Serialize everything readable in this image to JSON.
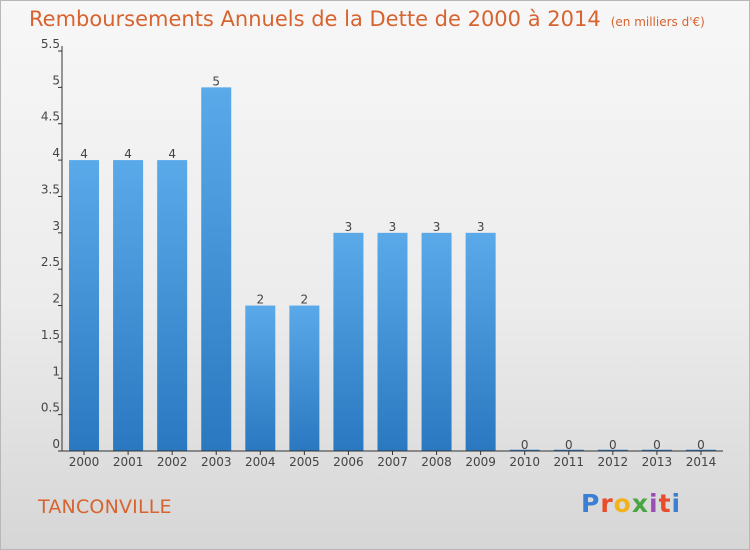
{
  "title": "Remboursements Annuels de la Dette de 2000 à 2014",
  "unit_note": "(en milliers d'€)",
  "city": "TANCONVILLE",
  "logo": {
    "text": "Proxiti",
    "letter_colors": [
      "#3b7fd4",
      "#e84c2b",
      "#f2b21b",
      "#49a542",
      "#9b4fb5",
      "#e84c2b",
      "#3b7fd4"
    ]
  },
  "colors": {
    "title": "#d7632f",
    "bar_light": "#5aaaea",
    "bar_dark": "#2a78c0",
    "axis": "#333333"
  },
  "chart_data": {
    "type": "bar",
    "categories": [
      "2000",
      "2001",
      "2002",
      "2003",
      "2004",
      "2005",
      "2006",
      "2007",
      "2008",
      "2009",
      "2010",
      "2011",
      "2012",
      "2013",
      "2014"
    ],
    "values": [
      4,
      4,
      4,
      5,
      2,
      2,
      3,
      3,
      3,
      3,
      0,
      0,
      0,
      0,
      0
    ],
    "data_labels": [
      "4",
      "4",
      "4",
      "5",
      "2",
      "2",
      "3",
      "3",
      "3",
      "3",
      "0",
      "0",
      "0",
      "0",
      "0"
    ],
    "y_ticks": [
      0,
      0.5,
      1,
      1.5,
      2,
      2.5,
      3,
      3.5,
      4,
      4.5,
      5,
      5.5
    ],
    "y_tick_labels": [
      "0",
      "0.5",
      "1",
      "1.5",
      "2",
      "2.5",
      "3",
      "3.5",
      "4",
      "4.5",
      "5",
      "5.5"
    ],
    "ylim": [
      0,
      5.5
    ],
    "grid": false,
    "xlabel": "",
    "ylabel": ""
  }
}
